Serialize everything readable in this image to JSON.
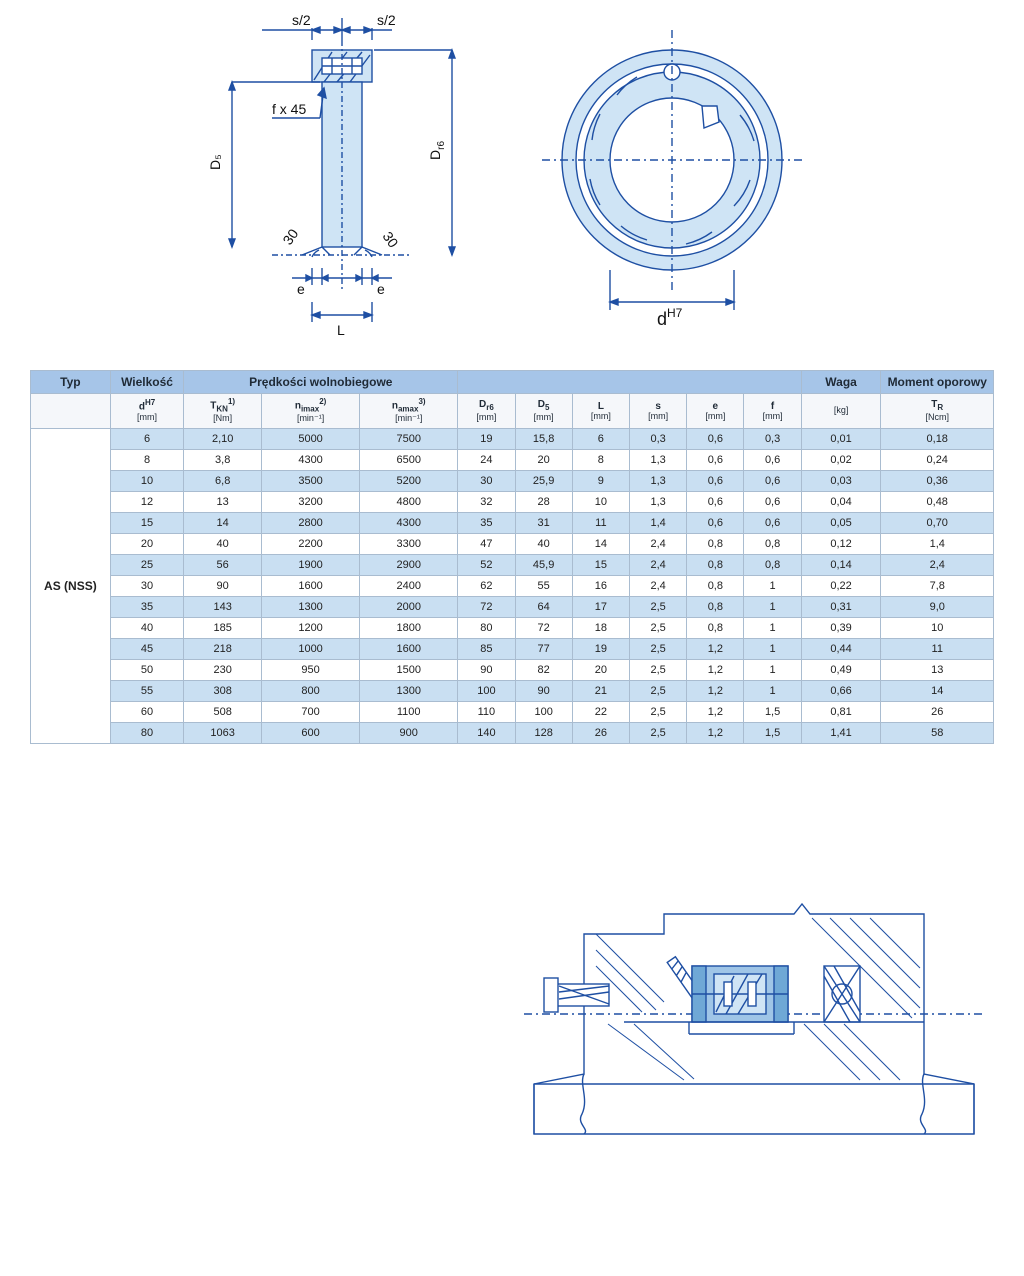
{
  "colors": {
    "header_bg": "#a6c5e8",
    "row_odd": "#c9dff2",
    "row_even": "#ffffff",
    "border": "#a9bcd0",
    "outer_border": "#5b7d9f",
    "drawing_stroke": "#1e4fa3",
    "drawing_fill_light": "#cfe4f5",
    "drawing_fill_mid": "#9fc5e7"
  },
  "diagram": {
    "labels": {
      "s_half_left": "s/2",
      "s_half_right": "s/2",
      "fx45": "f x 45",
      "D5": "D₅",
      "Dr6": "D",
      "Dr6_sub": "r6",
      "thirty_l": "30",
      "thirty_r": "30",
      "e_left": "e",
      "e_right": "e",
      "L": "L",
      "dH7": "d",
      "dH7_sup": "H7"
    }
  },
  "table": {
    "title_row": {
      "typ": "Typ",
      "wielkosc": "Wielkość",
      "predkosci": "Prędkości wolnobiegowe",
      "waga": "Waga",
      "moment": "Moment oporowy"
    },
    "sub_headers": [
      {
        "label": "d",
        "sup": "H7",
        "unit": "[mm]"
      },
      {
        "label": "T",
        "sub": "KN",
        "sup": "1)",
        "unit": "[Nm]"
      },
      {
        "label": "n",
        "sub": "imax",
        "sup": "2)",
        "unit": "[min⁻¹]"
      },
      {
        "label": "n",
        "sub": "amax",
        "sup": "3)",
        "unit": "[min⁻¹]"
      },
      {
        "label": "D",
        "sub": "r6",
        "unit": "[mm]"
      },
      {
        "label": "D",
        "sub": "5",
        "unit": "[mm]"
      },
      {
        "label": "L",
        "unit": "[mm]"
      },
      {
        "label": "s",
        "unit": "[mm]"
      },
      {
        "label": "e",
        "unit": "[mm]"
      },
      {
        "label": "f",
        "unit": "[mm]"
      },
      {
        "label": "",
        "unit": "[kg]"
      },
      {
        "label": "T",
        "sub": "R",
        "unit": "[Ncm]"
      }
    ],
    "type_label": "AS (NSS)",
    "rows": [
      [
        "6",
        "2,10",
        "5000",
        "7500",
        "19",
        "15,8",
        "6",
        "0,3",
        "0,6",
        "0,3",
        "0,01",
        "0,18"
      ],
      [
        "8",
        "3,8",
        "4300",
        "6500",
        "24",
        "20",
        "8",
        "1,3",
        "0,6",
        "0,6",
        "0,02",
        "0,24"
      ],
      [
        "10",
        "6,8",
        "3500",
        "5200",
        "30",
        "25,9",
        "9",
        "1,3",
        "0,6",
        "0,6",
        "0,03",
        "0,36"
      ],
      [
        "12",
        "13",
        "3200",
        "4800",
        "32",
        "28",
        "10",
        "1,3",
        "0,6",
        "0,6",
        "0,04",
        "0,48"
      ],
      [
        "15",
        "14",
        "2800",
        "4300",
        "35",
        "31",
        "11",
        "1,4",
        "0,6",
        "0,6",
        "0,05",
        "0,70"
      ],
      [
        "20",
        "40",
        "2200",
        "3300",
        "47",
        "40",
        "14",
        "2,4",
        "0,8",
        "0,8",
        "0,12",
        "1,4"
      ],
      [
        "25",
        "56",
        "1900",
        "2900",
        "52",
        "45,9",
        "15",
        "2,4",
        "0,8",
        "0,8",
        "0,14",
        "2,4"
      ],
      [
        "30",
        "90",
        "1600",
        "2400",
        "62",
        "55",
        "16",
        "2,4",
        "0,8",
        "1",
        "0,22",
        "7,8"
      ],
      [
        "35",
        "143",
        "1300",
        "2000",
        "72",
        "64",
        "17",
        "2,5",
        "0,8",
        "1",
        "0,31",
        "9,0"
      ],
      [
        "40",
        "185",
        "1200",
        "1800",
        "80",
        "72",
        "18",
        "2,5",
        "0,8",
        "1",
        "0,39",
        "10"
      ],
      [
        "45",
        "218",
        "1000",
        "1600",
        "85",
        "77",
        "19",
        "2,5",
        "1,2",
        "1",
        "0,44",
        "11"
      ],
      [
        "50",
        "230",
        "950",
        "1500",
        "90",
        "82",
        "20",
        "2,5",
        "1,2",
        "1",
        "0,49",
        "13"
      ],
      [
        "55",
        "308",
        "800",
        "1300",
        "100",
        "90",
        "21",
        "2,5",
        "1,2",
        "1",
        "0,66",
        "14"
      ],
      [
        "60",
        "508",
        "700",
        "1100",
        "110",
        "100",
        "22",
        "2,5",
        "1,2",
        "1,5",
        "0,81",
        "26"
      ],
      [
        "80",
        "1063",
        "600",
        "900",
        "140",
        "128",
        "26",
        "2,5",
        "1,2",
        "1,5",
        "1,41",
        "58"
      ]
    ]
  }
}
